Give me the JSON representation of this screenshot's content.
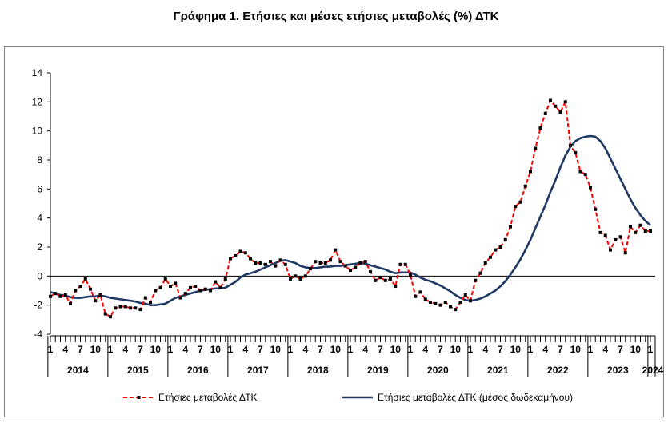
{
  "chart_data": {
    "type": "line",
    "title": "Γράφημα 1. Ετήσιες και μέσες ετήσιες μεταβολές (%) ΔΤΚ",
    "xlabel": "",
    "ylabel": "",
    "ylim": [
      -4,
      14
    ],
    "yticks": [
      "14",
      "12",
      "10",
      "8",
      "6",
      "4",
      "2",
      "0",
      "-2",
      "-4"
    ],
    "month_tick_labels": [
      "1",
      "4",
      "7",
      "10"
    ],
    "years": [
      "2014",
      "2015",
      "2016",
      "2017",
      "2018",
      "2019",
      "2020",
      "2021",
      "2022",
      "2023",
      "2024"
    ],
    "x_start": "2014-01",
    "x_end": "2024-01",
    "grid": false,
    "legend_position": "bottom",
    "colors": {
      "annual": "#ff0000",
      "average": "#1f3864",
      "markers": "#000000",
      "axis": "#000000"
    },
    "series": [
      {
        "name": "Ετήσιες μεταβολές ΔΤΚ",
        "style": "dashed-with-markers",
        "values": [
          -1.4,
          -1.2,
          -1.4,
          -1.3,
          -1.9,
          -1.0,
          -0.7,
          -0.2,
          -0.9,
          -1.7,
          -1.3,
          -2.6,
          -2.8,
          -2.2,
          -2.1,
          -2.1,
          -2.2,
          -2.2,
          -2.3,
          -1.5,
          -1.8,
          -1.0,
          -0.8,
          -0.2,
          -0.7,
          -0.5,
          -1.5,
          -1.2,
          -0.8,
          -0.7,
          -1.0,
          -0.9,
          -1.0,
          -0.4,
          -0.8,
          -0.2,
          1.2,
          1.4,
          1.7,
          1.6,
          1.2,
          0.9,
          0.9,
          0.8,
          1.0,
          0.7,
          1.1,
          0.8,
          -0.2,
          0.0,
          -0.2,
          0.0,
          0.5,
          1.0,
          0.9,
          0.9,
          1.1,
          1.8,
          1.0,
          0.7,
          0.4,
          0.6,
          0.9,
          1.0,
          0.3,
          -0.3,
          -0.1,
          -0.3,
          -0.2,
          -0.7,
          0.8,
          0.8,
          0.1,
          -1.4,
          -1.1,
          -1.6,
          -1.8,
          -1.9,
          -2.0,
          -1.8,
          -2.1,
          -2.3,
          -1.8,
          -1.3,
          -1.7,
          -0.3,
          0.2,
          0.9,
          1.3,
          1.8,
          2.0,
          2.5,
          3.4,
          4.8,
          5.1,
          6.2,
          7.2,
          8.8,
          10.2,
          11.2,
          12.1,
          11.7,
          11.3,
          12.0,
          9.0,
          8.5,
          7.2,
          7.0,
          6.1,
          4.6,
          3.0,
          2.8,
          1.8,
          2.5,
          2.7,
          1.6,
          3.4,
          3.0,
          3.5,
          3.1,
          3.1
        ]
      },
      {
        "name": "Ετήσιες μεταβολές ΔΤΚ (μέσος δωδεκαμήνου)",
        "style": "solid",
        "values": [
          -1.1,
          -1.2,
          -1.3,
          -1.35,
          -1.45,
          -1.5,
          -1.5,
          -1.45,
          -1.4,
          -1.4,
          -1.35,
          -1.4,
          -1.5,
          -1.55,
          -1.6,
          -1.65,
          -1.7,
          -1.75,
          -1.85,
          -1.9,
          -2.0,
          -2.0,
          -1.95,
          -1.9,
          -1.7,
          -1.5,
          -1.4,
          -1.3,
          -1.2,
          -1.1,
          -1.0,
          -0.95,
          -0.9,
          -0.85,
          -0.85,
          -0.8,
          -0.6,
          -0.4,
          -0.1,
          0.1,
          0.2,
          0.3,
          0.45,
          0.6,
          0.75,
          0.9,
          1.05,
          1.1,
          1.0,
          0.9,
          0.7,
          0.6,
          0.55,
          0.55,
          0.6,
          0.65,
          0.65,
          0.7,
          0.7,
          0.75,
          0.8,
          0.85,
          0.9,
          0.85,
          0.75,
          0.65,
          0.55,
          0.45,
          0.3,
          0.2,
          0.25,
          0.25,
          0.25,
          0.1,
          -0.1,
          -0.25,
          -0.35,
          -0.5,
          -0.65,
          -0.85,
          -1.05,
          -1.3,
          -1.5,
          -1.65,
          -1.7,
          -1.65,
          -1.55,
          -1.4,
          -1.2,
          -1.0,
          -0.7,
          -0.35,
          0.1,
          0.6,
          1.15,
          1.8,
          2.5,
          3.3,
          4.1,
          4.9,
          5.8,
          6.6,
          7.5,
          8.3,
          8.9,
          9.3,
          9.5,
          9.6,
          9.65,
          9.6,
          9.3,
          8.8,
          8.1,
          7.4,
          6.7,
          6.0,
          5.3,
          4.7,
          4.2,
          3.8,
          3.5
        ]
      }
    ]
  }
}
